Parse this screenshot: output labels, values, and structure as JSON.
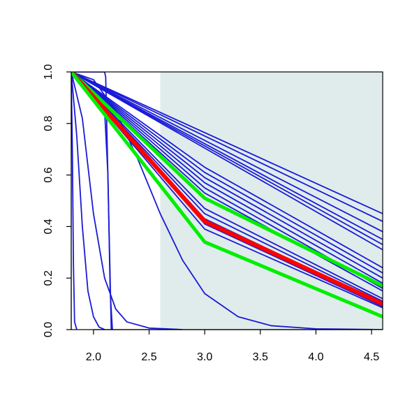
{
  "chart_data": {
    "type": "line",
    "title": "",
    "xlabel": "",
    "ylabel": "",
    "xlim": [
      1.8,
      4.6
    ],
    "ylim": [
      0.0,
      1.0
    ],
    "x_ticks": [
      2.0,
      2.5,
      3.0,
      3.5,
      4.0,
      4.5
    ],
    "x_tick_labels": [
      "2.0",
      "2.5",
      "3.0",
      "3.5",
      "4.0",
      "4.5"
    ],
    "y_ticks": [
      0.0,
      0.2,
      0.4,
      0.6,
      0.8,
      1.0
    ],
    "y_tick_labels": [
      "0.0",
      "0.2",
      "0.4",
      "0.6",
      "0.8",
      "1.0"
    ],
    "grid": false,
    "shaded_region": {
      "x_from": 2.6,
      "x_to": 4.6,
      "color": "#e0ecec"
    },
    "colors": {
      "blue": "#1a1ad6",
      "red": "#ff0000",
      "green": "#00ee00"
    },
    "series": [
      {
        "color": "blue",
        "width": 1.8,
        "x": [
          1.8,
          4.6
        ],
        "y": [
          1.0,
          0.45
        ]
      },
      {
        "color": "blue",
        "width": 1.8,
        "x": [
          1.8,
          4.6
        ],
        "y": [
          1.0,
          0.42
        ]
      },
      {
        "color": "blue",
        "width": 1.8,
        "x": [
          1.8,
          4.6
        ],
        "y": [
          1.0,
          0.38
        ]
      },
      {
        "color": "blue",
        "width": 1.8,
        "x": [
          1.8,
          4.6
        ],
        "y": [
          1.0,
          0.35
        ]
      },
      {
        "color": "blue",
        "width": 1.8,
        "x": [
          1.8,
          4.6
        ],
        "y": [
          1.0,
          0.33
        ]
      },
      {
        "color": "blue",
        "width": 1.8,
        "x": [
          1.8,
          4.6
        ],
        "y": [
          1.0,
          0.31
        ]
      },
      {
        "color": "blue",
        "width": 1.8,
        "x": [
          1.8,
          3.0,
          4.6
        ],
        "y": [
          1.0,
          0.63,
          0.24
        ]
      },
      {
        "color": "blue",
        "width": 1.8,
        "x": [
          1.8,
          3.0,
          4.6
        ],
        "y": [
          1.0,
          0.61,
          0.22
        ]
      },
      {
        "color": "blue",
        "width": 1.8,
        "x": [
          1.8,
          3.0,
          4.6
        ],
        "y": [
          1.0,
          0.59,
          0.2
        ]
      },
      {
        "color": "blue",
        "width": 1.8,
        "x": [
          1.8,
          3.0,
          4.6
        ],
        "y": [
          1.0,
          0.57,
          0.18
        ]
      },
      {
        "color": "blue",
        "width": 1.8,
        "x": [
          1.8,
          3.0,
          4.6
        ],
        "y": [
          1.0,
          0.55,
          0.16
        ]
      },
      {
        "color": "blue",
        "width": 1.8,
        "x": [
          1.8,
          3.0,
          4.6
        ],
        "y": [
          1.0,
          0.53,
          0.15
        ]
      },
      {
        "color": "blue",
        "width": 1.8,
        "x": [
          1.8,
          3.0,
          4.6
        ],
        "y": [
          1.0,
          0.47,
          0.12
        ]
      },
      {
        "color": "blue",
        "width": 1.8,
        "x": [
          1.8,
          3.0,
          4.6
        ],
        "y": [
          1.0,
          0.45,
          0.11
        ]
      },
      {
        "color": "blue",
        "width": 1.8,
        "x": [
          1.8,
          3.0,
          4.6
        ],
        "y": [
          1.0,
          0.43,
          0.1
        ]
      },
      {
        "color": "blue",
        "width": 1.8,
        "x": [
          1.8,
          3.0,
          4.6
        ],
        "y": [
          1.0,
          0.41,
          0.09
        ]
      },
      {
        "color": "blue",
        "width": 1.8,
        "x": [
          1.8,
          3.0,
          4.6
        ],
        "y": [
          1.0,
          0.39,
          0.085
        ]
      },
      {
        "color": "blue",
        "width": 1.8,
        "x": [
          1.8,
          2.0,
          2.2,
          2.4,
          2.6,
          2.8,
          3.0,
          3.3,
          3.6,
          4.0,
          4.6
        ],
        "y": [
          1.0,
          0.97,
          0.85,
          0.66,
          0.45,
          0.27,
          0.14,
          0.05,
          0.015,
          0.003,
          0.0
        ]
      },
      {
        "color": "blue",
        "width": 1.8,
        "x": [
          1.8,
          1.9,
          2.0,
          2.1,
          2.2,
          2.3,
          2.5,
          2.8
        ],
        "y": [
          1.0,
          0.82,
          0.45,
          0.2,
          0.08,
          0.03,
          0.006,
          0.0
        ]
      },
      {
        "color": "blue",
        "width": 1.8,
        "x": [
          1.8,
          1.85,
          1.9,
          1.95,
          2.0,
          2.05,
          2.1
        ],
        "y": [
          1.0,
          0.75,
          0.4,
          0.15,
          0.05,
          0.01,
          0.0
        ]
      },
      {
        "color": "blue",
        "width": 1.8,
        "x": [
          1.8,
          2.1,
          2.11,
          2.16
        ],
        "y": [
          1.0,
          1.0,
          0.98,
          0.0
        ]
      },
      {
        "color": "blue",
        "width": 1.8,
        "x": [
          1.8,
          2.1,
          2.13,
          2.15,
          2.17
        ],
        "y": [
          1.0,
          0.85,
          0.6,
          0.15,
          0.0
        ]
      },
      {
        "color": "blue",
        "width": 1.8,
        "x": [
          1.8,
          1.81,
          1.82,
          1.83,
          1.85
        ],
        "y": [
          1.0,
          0.7,
          0.25,
          0.03,
          0.0
        ]
      },
      {
        "color": "green",
        "width": 5,
        "x": [
          1.8,
          3.0,
          4.6
        ],
        "y": [
          1.0,
          0.51,
          0.17
        ]
      },
      {
        "color": "red",
        "width": 6,
        "x": [
          1.8,
          3.0,
          4.6
        ],
        "y": [
          1.0,
          0.42,
          0.1
        ]
      },
      {
        "color": "green",
        "width": 5,
        "x": [
          1.8,
          3.0,
          4.6
        ],
        "y": [
          1.0,
          0.34,
          0.05
        ]
      }
    ]
  }
}
